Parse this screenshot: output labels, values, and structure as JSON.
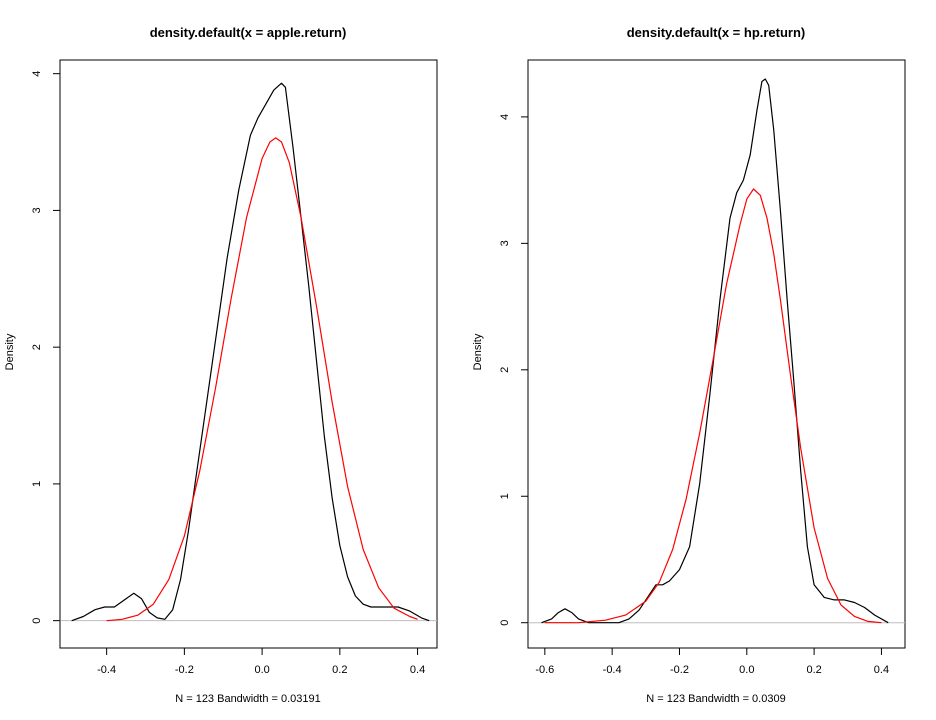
{
  "chart_data": [
    {
      "type": "line",
      "title": "density.default(x = apple.return)",
      "xlabel": "N = 123   Bandwidth = 0.03191",
      "ylabel": "Density",
      "xlim": [
        -0.52,
        0.45
      ],
      "ylim": [
        -0.2,
        4.1
      ],
      "xticks": [
        -0.4,
        -0.2,
        0.0,
        0.2,
        0.4
      ],
      "xtick_labels": [
        "-0.4",
        "-0.2",
        "0.0",
        "0.2",
        "0.4"
      ],
      "yticks": [
        0,
        1,
        2,
        3,
        4
      ],
      "ytick_labels": [
        "0",
        "1",
        "2",
        "3",
        "4"
      ],
      "baseline": 0,
      "grid": false,
      "colors": {
        "density": "#000000",
        "normal": "#ff0000",
        "baseline": "#bebebe"
      },
      "series": [
        {
          "color": "#000000",
          "x": [
            -0.49,
            -0.46,
            -0.43,
            -0.405,
            -0.38,
            -0.355,
            -0.33,
            -0.31,
            -0.29,
            -0.27,
            -0.25,
            -0.23,
            -0.21,
            -0.19,
            -0.17,
            -0.15,
            -0.12,
            -0.09,
            -0.06,
            -0.03,
            -0.01,
            0.01,
            0.03,
            0.05,
            0.06,
            0.08,
            0.1,
            0.12,
            0.14,
            0.16,
            0.18,
            0.2,
            0.22,
            0.24,
            0.26,
            0.28,
            0.3,
            0.32,
            0.35,
            0.38,
            0.41,
            0.43
          ],
          "y": [
            0.0,
            0.03,
            0.08,
            0.1,
            0.1,
            0.15,
            0.2,
            0.16,
            0.06,
            0.02,
            0.01,
            0.08,
            0.3,
            0.65,
            1.05,
            1.45,
            2.05,
            2.65,
            3.15,
            3.55,
            3.68,
            3.78,
            3.88,
            3.93,
            3.9,
            3.45,
            2.95,
            2.45,
            1.9,
            1.35,
            0.9,
            0.55,
            0.32,
            0.18,
            0.12,
            0.1,
            0.1,
            0.1,
            0.1,
            0.07,
            0.02,
            0.0
          ]
        },
        {
          "color": "#ff0000",
          "x": [
            -0.4,
            -0.36,
            -0.32,
            -0.28,
            -0.24,
            -0.2,
            -0.16,
            -0.12,
            -0.08,
            -0.04,
            0.0,
            0.02,
            0.035,
            0.05,
            0.07,
            0.1,
            0.14,
            0.18,
            0.22,
            0.26,
            0.3,
            0.34,
            0.38,
            0.4
          ],
          "y": [
            0.0,
            0.01,
            0.04,
            0.12,
            0.3,
            0.62,
            1.1,
            1.7,
            2.35,
            2.95,
            3.38,
            3.5,
            3.53,
            3.5,
            3.35,
            2.95,
            2.3,
            1.6,
            0.98,
            0.52,
            0.24,
            0.09,
            0.03,
            0.01
          ]
        }
      ]
    },
    {
      "type": "line",
      "title": "density.default(x = hp.return)",
      "xlabel": "N = 123   Bandwidth = 0.0309",
      "ylabel": "Density",
      "xlim": [
        -0.65,
        0.47
      ],
      "ylim": [
        -0.2,
        4.45
      ],
      "xticks": [
        -0.6,
        -0.4,
        -0.2,
        0.0,
        0.2,
        0.4
      ],
      "xtick_labels": [
        "-0.6",
        "-0.4",
        "-0.2",
        "0.0",
        "0.2",
        "0.4"
      ],
      "yticks": [
        0,
        1,
        2,
        3,
        4
      ],
      "ytick_labels": [
        "0",
        "1",
        "2",
        "3",
        "4"
      ],
      "baseline": 0,
      "grid": false,
      "colors": {
        "density": "#000000",
        "normal": "#ff0000",
        "baseline": "#bebebe"
      },
      "series": [
        {
          "color": "#000000",
          "x": [
            -0.61,
            -0.58,
            -0.56,
            -0.54,
            -0.52,
            -0.5,
            -0.47,
            -0.44,
            -0.41,
            -0.38,
            -0.35,
            -0.32,
            -0.29,
            -0.27,
            -0.25,
            -0.23,
            -0.2,
            -0.17,
            -0.14,
            -0.11,
            -0.08,
            -0.05,
            -0.03,
            -0.01,
            0.01,
            0.03,
            0.045,
            0.055,
            0.065,
            0.08,
            0.1,
            0.12,
            0.14,
            0.16,
            0.18,
            0.2,
            0.23,
            0.26,
            0.29,
            0.32,
            0.35,
            0.38,
            0.42
          ],
          "y": [
            0.0,
            0.03,
            0.08,
            0.11,
            0.08,
            0.03,
            0.0,
            0.0,
            0.0,
            0.0,
            0.03,
            0.1,
            0.22,
            0.3,
            0.3,
            0.33,
            0.42,
            0.6,
            1.1,
            1.8,
            2.55,
            3.2,
            3.4,
            3.5,
            3.7,
            4.05,
            4.28,
            4.3,
            4.25,
            3.9,
            3.25,
            2.55,
            1.9,
            1.2,
            0.6,
            0.3,
            0.2,
            0.18,
            0.18,
            0.16,
            0.12,
            0.06,
            0.0
          ]
        },
        {
          "color": "#ff0000",
          "x": [
            -0.6,
            -0.5,
            -0.42,
            -0.36,
            -0.3,
            -0.26,
            -0.22,
            -0.18,
            -0.14,
            -0.1,
            -0.06,
            -0.02,
            0.0,
            0.02,
            0.04,
            0.06,
            0.08,
            0.1,
            0.13,
            0.16,
            0.2,
            0.24,
            0.28,
            0.32,
            0.36,
            0.4
          ],
          "y": [
            0.0,
            0.0,
            0.02,
            0.06,
            0.17,
            0.32,
            0.58,
            0.98,
            1.5,
            2.08,
            2.68,
            3.15,
            3.35,
            3.43,
            3.38,
            3.2,
            2.92,
            2.55,
            1.95,
            1.38,
            0.75,
            0.35,
            0.14,
            0.05,
            0.01,
            0.0
          ]
        }
      ]
    }
  ]
}
